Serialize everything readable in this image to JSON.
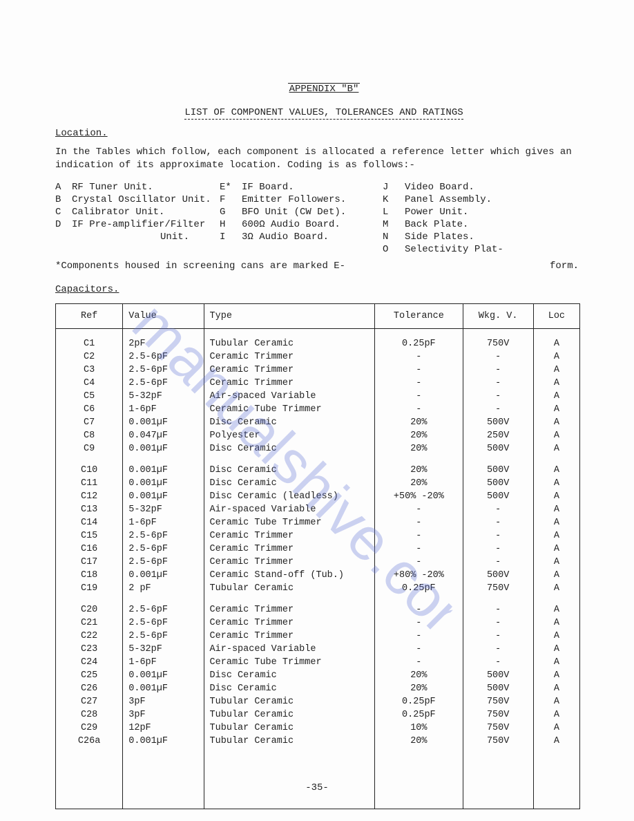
{
  "header": {
    "appendix": "APPENDIX \"B\"",
    "subtitle": "LIST OF COMPONENT VALUES, TOLERANCES AND RATINGS"
  },
  "location": {
    "heading": "Location.",
    "paragraph": "In the Tables which follow,  each component is allocated a reference letter which gives an indication of its approximate location.  Coding is as follows:-",
    "codes": {
      "A": "RF Tuner Unit.",
      "B": "Crystal Oscillator Unit.",
      "C": "Calibrator Unit.",
      "D": "IF Pre-amplifier/Filter",
      "D_unit": "Unit.",
      "E": "IF Board.",
      "E_letter": "E*",
      "F": "Emitter Followers.",
      "G": "BFO Unit (CW Det).",
      "H": "600Ω Audio Board.",
      "I": "3Ω Audio Board.",
      "J": "Video Board.",
      "K": "Panel Assembly.",
      "L": "Power Unit.",
      "M": "Back Plate.",
      "N": "Side Plates.",
      "O": "Selectivity Plat-",
      "O_cont": "form."
    },
    "footnote": "*Components housed in screening cans are marked E-"
  },
  "capacitors": {
    "heading": "Capacitors.",
    "columns": [
      "Ref",
      "Value",
      "Type",
      "Tolerance",
      "Wkg. V.",
      "Loc"
    ],
    "rows": [
      {
        "ref": "C1",
        "value": "2pF",
        "type": "Tubular Ceramic",
        "tol": "0.25pF",
        "wkg": "750V",
        "loc": "A",
        "first": true
      },
      {
        "ref": "C2",
        "value": "2.5-6pF",
        "type": "Ceramic Trimmer",
        "tol": "-",
        "wkg": "-",
        "loc": "A"
      },
      {
        "ref": "C3",
        "value": "2.5-6pF",
        "type": "Ceramic Trimmer",
        "tol": "-",
        "wkg": "-",
        "loc": "A"
      },
      {
        "ref": "C4",
        "value": "2.5-6pF",
        "type": "Ceramic Trimmer",
        "tol": "-",
        "wkg": "-",
        "loc": "A"
      },
      {
        "ref": "C5",
        "value": "5-32pF",
        "type": "Air-spaced Variable",
        "tol": "-",
        "wkg": "-",
        "loc": "A"
      },
      {
        "ref": "C6",
        "value": "1-6pF",
        "type": "Ceramic Tube Trimmer",
        "tol": "-",
        "wkg": "-",
        "loc": "A"
      },
      {
        "ref": "C7",
        "value": "0.001µF",
        "type": "Disc Ceramic",
        "tol": "20%",
        "wkg": "500V",
        "loc": "A"
      },
      {
        "ref": "C8",
        "value": "0.047µF",
        "type": "Polyester",
        "tol": "20%",
        "wkg": "250V",
        "loc": "A"
      },
      {
        "ref": "C9",
        "value": "0.001µF",
        "type": "Disc Ceramic",
        "tol": "20%",
        "wkg": "500V",
        "loc": "A"
      },
      {
        "ref": "C10",
        "value": "0.001µF",
        "type": "Disc Ceramic",
        "tol": "20%",
        "wkg": "500V",
        "loc": "A",
        "gap": true
      },
      {
        "ref": "C11",
        "value": "0.001µF",
        "type": "Disc Ceramic",
        "tol": "20%",
        "wkg": "500V",
        "loc": "A"
      },
      {
        "ref": "C12",
        "value": "0.001µF",
        "type": "Disc Ceramic (leadless)",
        "tol": "+50% -20%",
        "wkg": "500V",
        "loc": "A"
      },
      {
        "ref": "C13",
        "value": "5-32pF",
        "type": "Air-spaced Variable",
        "tol": "-",
        "wkg": "-",
        "loc": "A"
      },
      {
        "ref": "C14",
        "value": "1-6pF",
        "type": "Ceramic Tube Trimmer",
        "tol": "-",
        "wkg": "-",
        "loc": "A"
      },
      {
        "ref": "C15",
        "value": "2.5-6pF",
        "type": "Ceramic Trimmer",
        "tol": "-",
        "wkg": "-",
        "loc": "A"
      },
      {
        "ref": "C16",
        "value": "2.5-6pF",
        "type": "Ceramic Trimmer",
        "tol": "-",
        "wkg": "-",
        "loc": "A"
      },
      {
        "ref": "C17",
        "value": "2.5-6pF",
        "type": "Ceramic Trimmer",
        "tol": "-",
        "wkg": "-",
        "loc": "A"
      },
      {
        "ref": "C18",
        "value": "0.001µF",
        "type": "Ceramic Stand-off (Tub.)",
        "tol": "+80% -20%",
        "wkg": "500V",
        "loc": "A"
      },
      {
        "ref": "C19",
        "value": "2 pF",
        "type": "Tubular Ceramic",
        "tol": "0.25pF",
        "wkg": "750V",
        "loc": "A"
      },
      {
        "ref": "C20",
        "value": "2.5-6pF",
        "type": "Ceramic Trimmer",
        "tol": "-",
        "wkg": "-",
        "loc": "A",
        "gap": true
      },
      {
        "ref": "C21",
        "value": "2.5-6pF",
        "type": "Ceramic Trimmer",
        "tol": "-",
        "wkg": "-",
        "loc": "A"
      },
      {
        "ref": "C22",
        "value": "2.5-6pF",
        "type": "Ceramic Trimmer",
        "tol": "-",
        "wkg": "-",
        "loc": "A"
      },
      {
        "ref": "C23",
        "value": "5-32pF",
        "type": "Air-spaced Variable",
        "tol": "-",
        "wkg": "-",
        "loc": "A"
      },
      {
        "ref": "C24",
        "value": "1-6pF",
        "type": "Ceramic Tube Trimmer",
        "tol": "-",
        "wkg": "-",
        "loc": "A"
      },
      {
        "ref": "C25",
        "value": "0.001µF",
        "type": "Disc Ceramic",
        "tol": "20%",
        "wkg": "500V",
        "loc": "A"
      },
      {
        "ref": "C26",
        "value": "0.001µF",
        "type": "Disc Ceramic",
        "tol": "20%",
        "wkg": "500V",
        "loc": "A"
      },
      {
        "ref": "C27",
        "value": "3pF",
        "type": "Tubular Ceramic",
        "tol": "0.25pF",
        "wkg": "750V",
        "loc": "A"
      },
      {
        "ref": "C28",
        "value": "3pF",
        "type": "Tubular Ceramic",
        "tol": "0.25pF",
        "wkg": "750V",
        "loc": "A"
      },
      {
        "ref": "C29",
        "value": "12pF",
        "type": "Tubular Ceramic",
        "tol": "10%",
        "wkg": "750V",
        "loc": "A"
      },
      {
        "ref": "C26a",
        "value": "0.001µF",
        "type": "Tubular Ceramic",
        "tol": "20%",
        "wkg": "750V",
        "loc": "A",
        "last": true
      }
    ]
  },
  "page_number": "-35-",
  "watermark_color": "#6073d6"
}
